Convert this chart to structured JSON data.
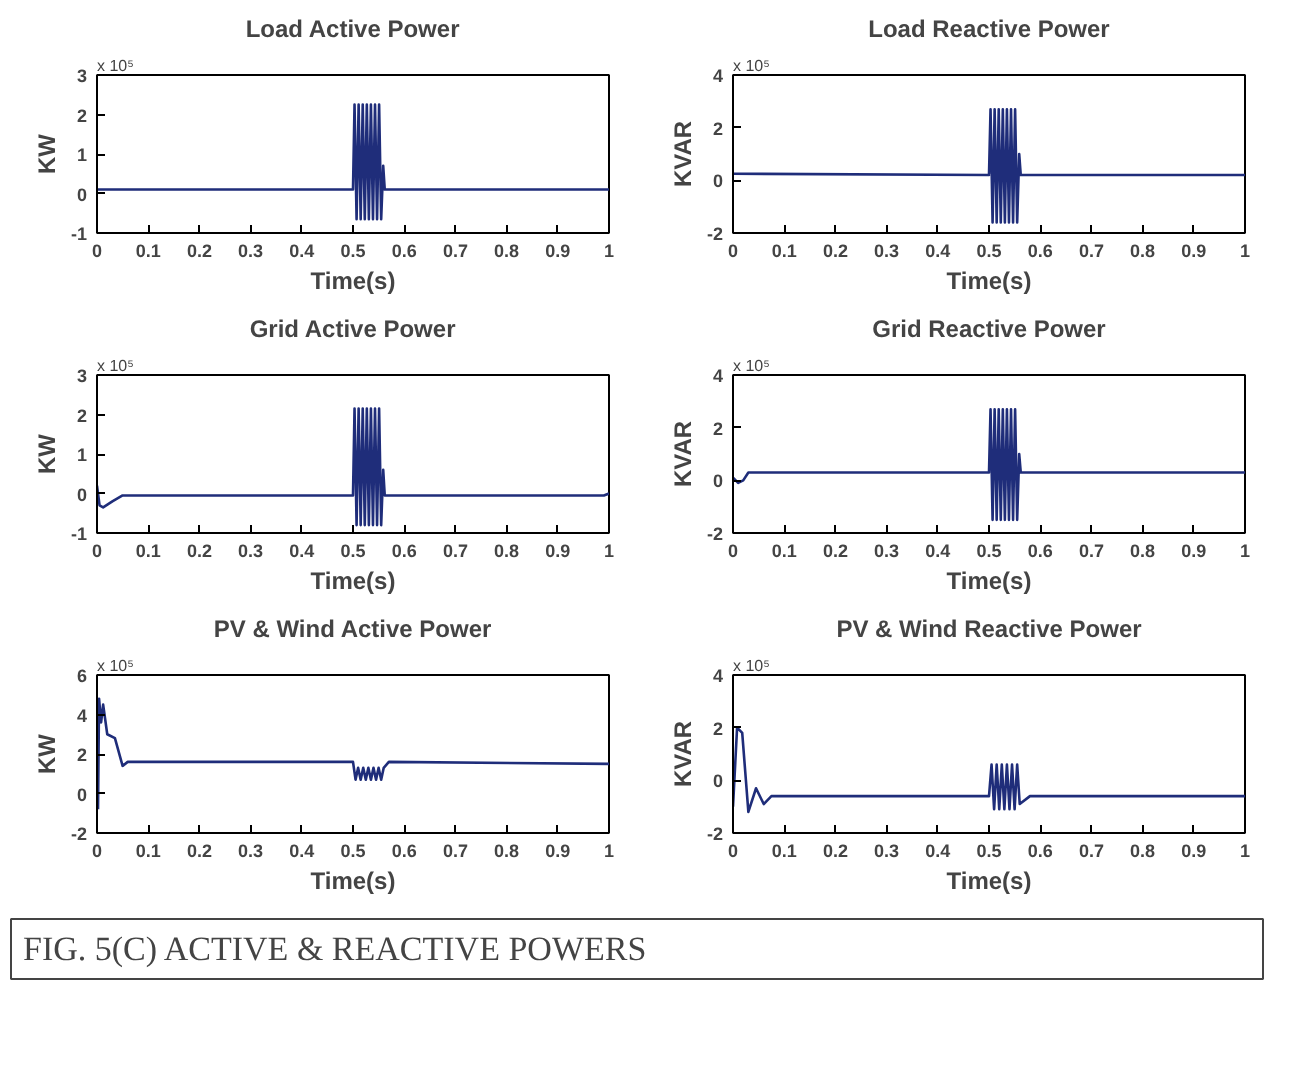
{
  "chart_data": [
    {
      "type": "line",
      "title": "Load Active Power",
      "xlabel": "Time(s)",
      "ylabel": "KW",
      "annotations": [
        "x 10⁵"
      ],
      "xlim": [
        0,
        1
      ],
      "ylim": [
        -1,
        3
      ],
      "xticks": [
        0,
        0.1,
        0.2,
        0.3,
        0.4,
        0.5,
        0.6,
        0.7,
        0.8,
        0.9,
        1
      ],
      "yticks": [
        -1,
        0,
        1,
        2,
        3
      ],
      "grid": false,
      "series": [
        {
          "color": "#1f2d7a",
          "x": [
            0,
            0.5,
            0.503,
            0.507,
            0.511,
            0.515,
            0.519,
            0.523,
            0.527,
            0.531,
            0.535,
            0.539,
            0.543,
            0.547,
            0.551,
            0.555,
            0.559,
            0.562,
            1
          ],
          "values": [
            0.1,
            0.1,
            2.25,
            -0.65,
            2.25,
            -0.65,
            2.25,
            -0.65,
            2.25,
            -0.65,
            2.25,
            -0.65,
            2.25,
            -0.65,
            2.25,
            -0.65,
            0.7,
            0.1,
            0.1
          ]
        }
      ]
    },
    {
      "type": "line",
      "title": "Load Reactive Power",
      "xlabel": "Time(s)",
      "ylabel": "KVAR",
      "annotations": [
        "x 10⁵"
      ],
      "xlim": [
        0,
        1
      ],
      "ylim": [
        -2,
        4
      ],
      "xticks": [
        0,
        0.1,
        0.2,
        0.3,
        0.4,
        0.5,
        0.6,
        0.7,
        0.8,
        0.9,
        1
      ],
      "yticks": [
        -2,
        0,
        2,
        4
      ],
      "grid": false,
      "series": [
        {
          "color": "#1f2d7a",
          "x": [
            0,
            0.5,
            0.503,
            0.507,
            0.511,
            0.515,
            0.519,
            0.523,
            0.527,
            0.531,
            0.535,
            0.539,
            0.543,
            0.547,
            0.551,
            0.555,
            0.559,
            0.562,
            1
          ],
          "values": [
            0.25,
            0.2,
            2.7,
            -1.6,
            2.7,
            -1.6,
            2.7,
            -1.6,
            2.7,
            -1.6,
            2.7,
            -1.6,
            2.7,
            -1.6,
            2.7,
            -1.6,
            1.0,
            0.2,
            0.2
          ]
        }
      ]
    },
    {
      "type": "line",
      "title": "Grid Active Power",
      "xlabel": "Time(s)",
      "ylabel": "KW",
      "annotations": [
        "x 10⁵"
      ],
      "xlim": [
        0,
        1
      ],
      "ylim": [
        -1,
        3
      ],
      "xticks": [
        0,
        0.1,
        0.2,
        0.3,
        0.4,
        0.5,
        0.6,
        0.7,
        0.8,
        0.9,
        1
      ],
      "yticks": [
        -1,
        0,
        1,
        2,
        3
      ],
      "grid": false,
      "series": [
        {
          "color": "#1f2d7a",
          "x": [
            0,
            0.005,
            0.012,
            0.03,
            0.05,
            0.5,
            0.503,
            0.507,
            0.511,
            0.515,
            0.519,
            0.523,
            0.527,
            0.531,
            0.535,
            0.539,
            0.543,
            0.547,
            0.551,
            0.555,
            0.559,
            0.562,
            0.99,
            1
          ],
          "values": [
            0.2,
            -0.3,
            -0.35,
            -0.2,
            -0.05,
            -0.05,
            2.15,
            -0.8,
            2.15,
            -0.8,
            2.15,
            -0.8,
            2.15,
            -0.8,
            2.15,
            -0.8,
            2.15,
            -0.8,
            2.15,
            -0.8,
            0.6,
            -0.05,
            -0.05,
            0.0
          ]
        }
      ]
    },
    {
      "type": "line",
      "title": "Grid Reactive Power",
      "xlabel": "Time(s)",
      "ylabel": "KVAR",
      "annotations": [
        "x 10⁵"
      ],
      "xlim": [
        0,
        1
      ],
      "ylim": [
        -2,
        4
      ],
      "xticks": [
        0,
        0.1,
        0.2,
        0.3,
        0.4,
        0.5,
        0.6,
        0.7,
        0.8,
        0.9,
        1
      ],
      "yticks": [
        -2,
        0,
        2,
        4
      ],
      "grid": false,
      "series": [
        {
          "color": "#1f2d7a",
          "x": [
            0,
            0.01,
            0.02,
            0.03,
            0.05,
            0.5,
            0.503,
            0.507,
            0.511,
            0.515,
            0.519,
            0.523,
            0.527,
            0.531,
            0.535,
            0.539,
            0.543,
            0.547,
            0.551,
            0.555,
            0.559,
            0.562,
            1
          ],
          "values": [
            0.1,
            -0.1,
            0.0,
            0.3,
            0.3,
            0.3,
            2.7,
            -1.5,
            2.7,
            -1.5,
            2.7,
            -1.5,
            2.7,
            -1.5,
            2.7,
            -1.5,
            2.7,
            -1.5,
            2.7,
            -1.5,
            1.0,
            0.3,
            0.3
          ]
        }
      ]
    },
    {
      "type": "line",
      "title": "PV & Wind Active Power",
      "xlabel": "Time(s)",
      "ylabel": "KW",
      "annotations": [
        "x 10⁵"
      ],
      "xlim": [
        0,
        1
      ],
      "ylim": [
        -2,
        6
      ],
      "xticks": [
        0,
        0.1,
        0.2,
        0.3,
        0.4,
        0.5,
        0.6,
        0.7,
        0.8,
        0.9,
        1
      ],
      "yticks": [
        -2,
        0,
        2,
        4,
        6
      ],
      "grid": false,
      "series": [
        {
          "color": "#1f2d7a",
          "x": [
            0.002,
            0.004,
            0.008,
            0.012,
            0.02,
            0.035,
            0.05,
            0.06,
            0.5,
            0.505,
            0.51,
            0.515,
            0.52,
            0.525,
            0.53,
            0.535,
            0.54,
            0.545,
            0.55,
            0.555,
            0.56,
            0.57,
            1
          ],
          "values": [
            -0.8,
            4.8,
            3.6,
            4.5,
            3.0,
            2.8,
            1.4,
            1.6,
            1.6,
            0.7,
            1.3,
            0.7,
            1.3,
            0.7,
            1.3,
            0.7,
            1.3,
            0.7,
            1.3,
            0.7,
            1.3,
            1.6,
            1.5
          ]
        }
      ]
    },
    {
      "type": "line",
      "title": "PV & Wind Reactive Power",
      "xlabel": "Time(s)",
      "ylabel": "KVAR",
      "annotations": [
        "x 10⁵"
      ],
      "xlim": [
        0,
        1
      ],
      "ylim": [
        -2,
        4
      ],
      "xticks": [
        0,
        0.1,
        0.2,
        0.3,
        0.4,
        0.5,
        0.6,
        0.7,
        0.8,
        0.9,
        1
      ],
      "yticks": [
        -2,
        0,
        2,
        4
      ],
      "grid": false,
      "series": [
        {
          "color": "#1f2d7a",
          "x": [
            0,
            0.008,
            0.018,
            0.03,
            0.045,
            0.06,
            0.075,
            0.1,
            0.5,
            0.505,
            0.51,
            0.515,
            0.52,
            0.525,
            0.53,
            0.535,
            0.54,
            0.545,
            0.55,
            0.555,
            0.56,
            0.58,
            1
          ],
          "values": [
            -1.0,
            2.0,
            1.8,
            -1.2,
            -0.3,
            -0.9,
            -0.6,
            -0.6,
            -0.6,
            0.6,
            -1.1,
            0.6,
            -1.1,
            0.6,
            -1.1,
            0.6,
            -1.1,
            0.6,
            -1.1,
            0.6,
            -0.9,
            -0.6,
            -0.6
          ]
        }
      ]
    },
    {
      "type": "other",
      "annotations": [
        "FIG. 5(C)  ACTIVE & REACTIVE POWERS"
      ]
    }
  ]
}
